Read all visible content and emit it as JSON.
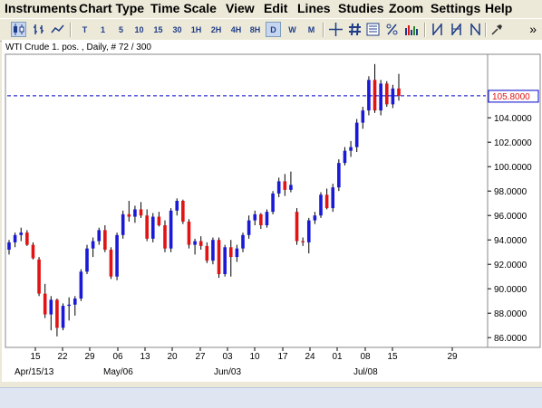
{
  "menu": [
    "Instruments",
    "Chart Type",
    "Time Scale",
    "View",
    "Edit",
    "Lines",
    "Studies",
    "Zoom",
    "Settings",
    "Help"
  ],
  "toolbar": {
    "timeframes": [
      "T",
      "1",
      "5",
      "10",
      "15",
      "30",
      "1H",
      "2H",
      "4H",
      "8H",
      "D",
      "W",
      "M"
    ],
    "active_timeframe": "D",
    "overflow_label": "»"
  },
  "chart": {
    "header": "WTI Crude 1. pos. , Daily, # 72 / 300",
    "last_price_label": "105.8000",
    "colors": {
      "up": "#1a1ad6",
      "down": "#e01414",
      "price_line": "#0000cc"
    }
  },
  "chart_data": {
    "type": "candlestick",
    "ylim": [
      85.2,
      109.2
    ],
    "y_ticks": [
      "104.0000",
      "102.0000",
      "100.0000",
      "98.0000",
      "96.0000",
      "94.0000",
      "92.0000",
      "90.0000",
      "88.0000",
      "86.0000"
    ],
    "x_ticks": [
      "15",
      "22",
      "29",
      "06",
      "13",
      "20",
      "27",
      "03",
      "10",
      "17",
      "24",
      "01",
      "08",
      "15",
      "29"
    ],
    "x_month_labels": [
      "Apr/15/13",
      "May/06",
      "Jun/03",
      "Jul/08"
    ],
    "reference_line": 105.8,
    "candles": [
      [
        93.2,
        94.0,
        92.8,
        93.8
      ],
      [
        93.8,
        94.6,
        93.4,
        94.4
      ],
      [
        94.4,
        95.0,
        93.9,
        94.6
      ],
      [
        94.6,
        94.8,
        93.5,
        93.6
      ],
      [
        93.6,
        93.8,
        92.4,
        92.5
      ],
      [
        92.4,
        92.6,
        89.4,
        89.6
      ],
      [
        89.6,
        90.4,
        87.6,
        87.9
      ],
      [
        87.9,
        89.4,
        86.6,
        89.1
      ],
      [
        89.1,
        89.2,
        86.1,
        86.8
      ],
      [
        86.8,
        88.8,
        86.6,
        88.6
      ],
      [
        88.6,
        89.3,
        87.4,
        88.7
      ],
      [
        88.7,
        89.4,
        87.8,
        89.2
      ],
      [
        89.2,
        91.6,
        89.0,
        91.4
      ],
      [
        91.4,
        93.6,
        91.2,
        93.3
      ],
      [
        93.3,
        94.2,
        92.6,
        93.9
      ],
      [
        93.9,
        95.0,
        93.6,
        94.8
      ],
      [
        94.8,
        95.2,
        93.0,
        93.2
      ],
      [
        93.2,
        93.4,
        90.8,
        91.0
      ],
      [
        91.0,
        94.6,
        90.7,
        94.4
      ],
      [
        94.4,
        96.4,
        94.1,
        96.1
      ],
      [
        96.1,
        97.2,
        95.5,
        95.9
      ],
      [
        95.9,
        96.8,
        95.4,
        96.5
      ],
      [
        96.5,
        97.1,
        95.8,
        96.0
      ],
      [
        96.0,
        96.5,
        93.9,
        94.1
      ],
      [
        94.1,
        96.2,
        93.8,
        95.9
      ],
      [
        95.9,
        96.3,
        95.1,
        95.2
      ],
      [
        95.2,
        95.6,
        93.0,
        93.3
      ],
      [
        93.3,
        96.6,
        93.0,
        96.4
      ],
      [
        96.4,
        97.4,
        96.0,
        97.2
      ],
      [
        97.2,
        97.3,
        95.3,
        95.5
      ],
      [
        95.5,
        95.7,
        93.3,
        93.6
      ],
      [
        93.6,
        94.1,
        92.8,
        93.9
      ],
      [
        93.9,
        94.3,
        93.2,
        93.5
      ],
      [
        93.5,
        93.8,
        92.1,
        92.3
      ],
      [
        92.3,
        94.2,
        92.0,
        94.0
      ],
      [
        94.0,
        94.2,
        90.9,
        91.2
      ],
      [
        91.2,
        93.6,
        91.0,
        93.4
      ],
      [
        93.4,
        94.0,
        91.0,
        92.6
      ],
      [
        92.6,
        93.6,
        92.2,
        93.3
      ],
      [
        93.3,
        94.6,
        93.0,
        94.4
      ],
      [
        94.4,
        96.0,
        94.1,
        95.6
      ],
      [
        95.6,
        96.4,
        95.2,
        96.1
      ],
      [
        96.1,
        96.2,
        94.9,
        95.2
      ],
      [
        95.2,
        96.5,
        95.0,
        96.3
      ],
      [
        96.3,
        98.0,
        96.1,
        97.8
      ],
      [
        97.8,
        99.1,
        97.5,
        98.8
      ],
      [
        98.8,
        99.4,
        97.6,
        98.1
      ],
      [
        98.1,
        99.6,
        97.9,
        98.5
      ],
      [
        96.3,
        96.6,
        93.6,
        93.9
      ],
      [
        93.9,
        94.2,
        93.5,
        93.8
      ],
      [
        93.8,
        95.8,
        92.9,
        95.6
      ],
      [
        95.6,
        96.3,
        95.3,
        96.0
      ],
      [
        96.0,
        97.9,
        95.8,
        97.7
      ],
      [
        97.7,
        98.2,
        96.5,
        96.6
      ],
      [
        96.6,
        98.6,
        96.3,
        98.3
      ],
      [
        98.3,
        100.6,
        98.0,
        100.3
      ],
      [
        100.3,
        101.6,
        100.1,
        101.3
      ],
      [
        101.3,
        102.1,
        100.8,
        101.6
      ],
      [
        101.6,
        103.9,
        101.2,
        103.6
      ],
      [
        103.6,
        104.9,
        103.1,
        104.6
      ],
      [
        104.6,
        107.4,
        104.2,
        107.1
      ],
      [
        107.1,
        108.4,
        104.4,
        104.6
      ],
      [
        104.6,
        107.1,
        104.2,
        106.8
      ],
      [
        106.8,
        107.0,
        104.9,
        105.1
      ],
      [
        105.1,
        106.7,
        104.8,
        106.4
      ],
      [
        106.4,
        107.6,
        105.4,
        105.8
      ]
    ]
  }
}
